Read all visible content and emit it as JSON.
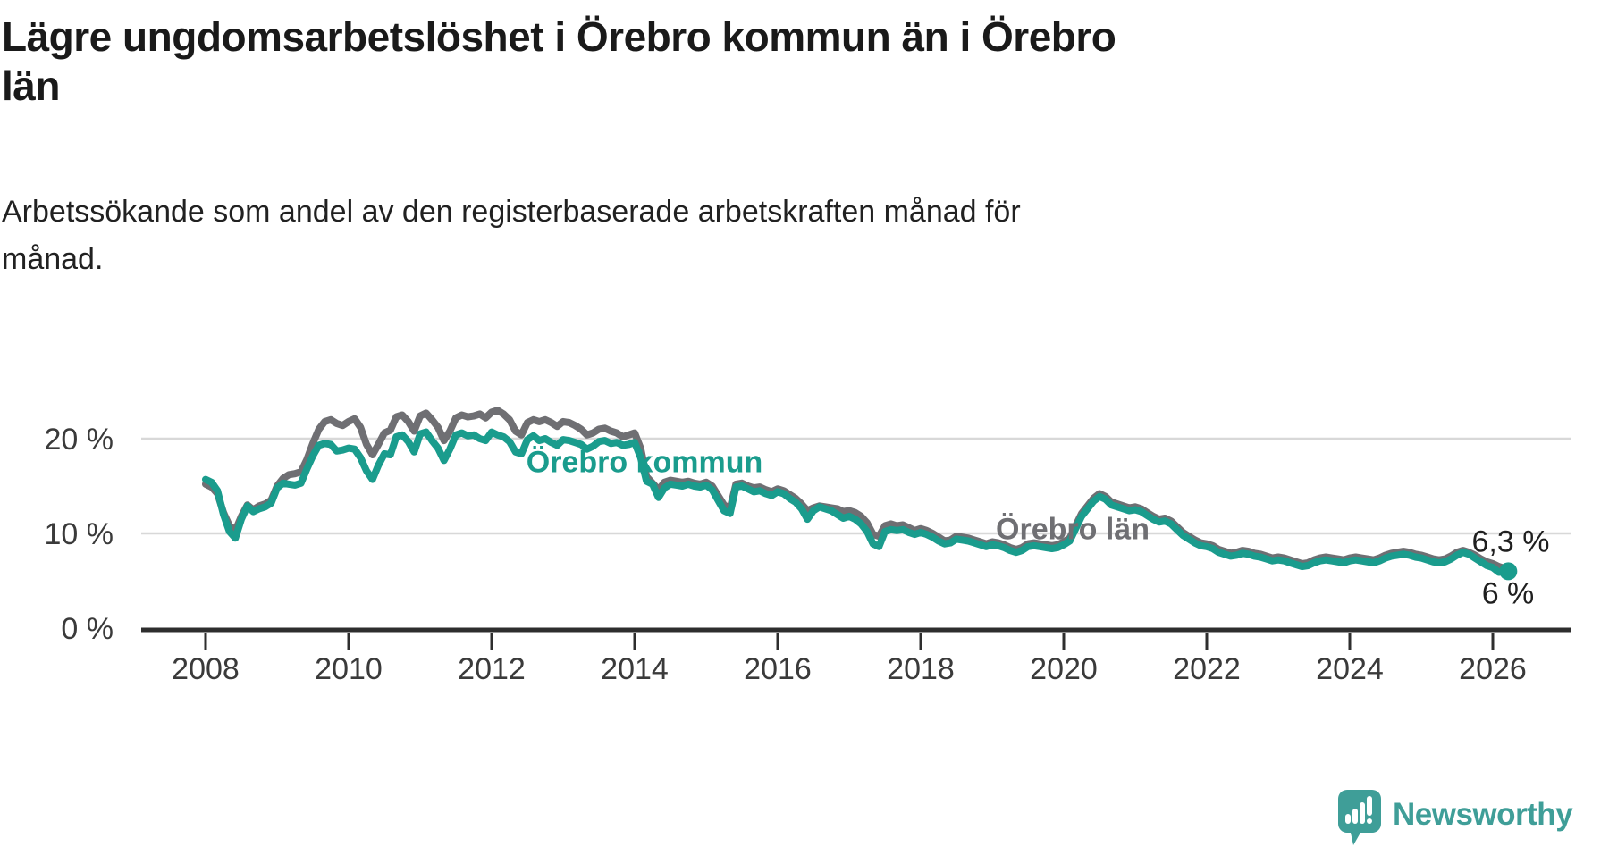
{
  "header": {
    "title": "Lägre ungdomsarbetslöshet i Örebro kommun än i Örebro\nlän",
    "subtitle": "Arbetssökande som andel av den registerbaserade arbetskraften månad för\nmånad."
  },
  "branding": {
    "logo_text": "Newsworthy",
    "logo_icon": "newsworthy-speech-bubble-bar-chart",
    "logo_color": "#3f9e98"
  },
  "chart_data": {
    "type": "line",
    "title": "Lägre ungdomsarbetslöshet i Örebro kommun än i Örebro län",
    "subtitle": "Arbetssökande som andel av den registerbaserade arbetskraften månad för månad.",
    "unit": "%",
    "frequency": "monthly",
    "x_axis": {
      "range": [
        2007.1,
        2027.1
      ],
      "ticks": [
        "2008",
        "2010",
        "2012",
        "2014",
        "2016",
        "2018",
        "2020",
        "2022",
        "2024",
        "2026"
      ],
      "tick_values": [
        2008,
        2010,
        2012,
        2014,
        2016,
        2018,
        2020,
        2022,
        2024,
        2026
      ]
    },
    "y_axis": {
      "range": [
        0,
        24
      ],
      "grid": true,
      "ticks": [
        {
          "value": 20,
          "label": "20 %"
        },
        {
          "value": 10,
          "label": "10 %"
        },
        {
          "value": 0,
          "label": "0 %"
        }
      ]
    },
    "colors": {
      "grid": "#d8d8d8",
      "axis": "#2e2e2e",
      "tick_label": "#3a3a3a",
      "end_label": "#1f1f1f"
    },
    "legend_position": "inline-labels",
    "series": [
      {
        "name": "Örebro län",
        "color": "#6f6f73",
        "end_label": "6,3 %",
        "end_dot": false,
        "start_year": 2008,
        "start_month": 1,
        "values": [
          15.2,
          14.9,
          14.2,
          12.2,
          10.8,
          10.3,
          11.8,
          13.0,
          12.5,
          12.9,
          13.1,
          13.5,
          15.0,
          15.8,
          16.2,
          16.3,
          16.5,
          17.8,
          19.5,
          21.0,
          21.8,
          22.0,
          21.6,
          21.4,
          21.8,
          22.1,
          21.2,
          19.4,
          18.3,
          19.4,
          20.6,
          20.9,
          22.3,
          22.5,
          21.8,
          20.8,
          22.4,
          22.7,
          22.0,
          21.2,
          19.8,
          20.8,
          22.2,
          22.5,
          22.3,
          22.4,
          22.6,
          22.2,
          22.8,
          23.0,
          22.6,
          22.0,
          20.8,
          20.4,
          21.7,
          22.0,
          21.8,
          22.0,
          21.7,
          21.3,
          21.8,
          21.7,
          21.4,
          21.0,
          20.4,
          20.6,
          21.0,
          21.1,
          20.8,
          20.6,
          20.2,
          20.4,
          20.6,
          19.0,
          16.0,
          15.3,
          14.6,
          15.4,
          15.6,
          15.5,
          15.4,
          15.5,
          15.3,
          15.2,
          15.4,
          15.0,
          14.0,
          13.0,
          12.6,
          15.2,
          15.3,
          15.0,
          14.8,
          14.9,
          14.6,
          14.4,
          14.7,
          14.5,
          14.1,
          13.7,
          13.1,
          12.4,
          12.7,
          12.9,
          12.8,
          12.7,
          12.6,
          12.3,
          12.4,
          12.2,
          11.8,
          11.1,
          9.9,
          9.7,
          10.8,
          11.0,
          10.8,
          10.9,
          10.6,
          10.3,
          10.5,
          10.3,
          10.0,
          9.6,
          9.2,
          9.3,
          9.7,
          9.6,
          9.5,
          9.3,
          9.1,
          8.9,
          9.1,
          9.0,
          8.8,
          8.5,
          8.3,
          8.5,
          8.9,
          9.0,
          8.9,
          8.8,
          8.7,
          8.8,
          9.1,
          9.5,
          10.8,
          12.1,
          12.9,
          13.7,
          14.2,
          13.9,
          13.3,
          13.1,
          12.9,
          12.7,
          12.8,
          12.6,
          12.2,
          11.8,
          11.5,
          11.6,
          11.3,
          10.7,
          10.1,
          9.7,
          9.3,
          9.0,
          8.9,
          8.7,
          8.3,
          8.1,
          7.9,
          8.0,
          8.2,
          8.1,
          7.9,
          7.8,
          7.6,
          7.4,
          7.5,
          7.4,
          7.2,
          7.0,
          6.8,
          6.9,
          7.2,
          7.4,
          7.5,
          7.4,
          7.3,
          7.2,
          7.4,
          7.5,
          7.4,
          7.3,
          7.2,
          7.4,
          7.7,
          7.9,
          8.0,
          8.1,
          8.0,
          7.8,
          7.7,
          7.5,
          7.3,
          7.2,
          7.3,
          7.6,
          8.0,
          8.2,
          8.0,
          7.7,
          7.3,
          7.0,
          6.8,
          6.5,
          6.3
        ]
      },
      {
        "name": "Örebro kommun",
        "color": "#1a9c8d",
        "end_label": "6 %",
        "end_dot": true,
        "start_year": 2008,
        "start_month": 1,
        "values": [
          15.7,
          15.4,
          14.5,
          12.0,
          10.2,
          9.5,
          11.5,
          12.9,
          12.3,
          12.6,
          12.8,
          13.2,
          14.8,
          15.3,
          15.2,
          15.1,
          15.3,
          16.8,
          18.2,
          19.3,
          19.5,
          19.4,
          18.7,
          18.8,
          19.0,
          18.9,
          18.0,
          16.6,
          15.7,
          17.2,
          18.4,
          18.3,
          20.2,
          20.4,
          19.7,
          18.6,
          20.5,
          20.7,
          19.8,
          19.0,
          17.7,
          18.9,
          20.4,
          20.6,
          20.3,
          20.4,
          20.0,
          19.8,
          20.7,
          20.4,
          20.2,
          19.7,
          18.6,
          18.4,
          19.9,
          20.3,
          19.8,
          20.0,
          19.6,
          19.3,
          19.9,
          19.8,
          19.6,
          19.4,
          18.9,
          19.2,
          19.7,
          19.8,
          19.5,
          19.6,
          19.3,
          19.4,
          19.6,
          18.0,
          15.5,
          15.2,
          13.8,
          14.8,
          15.2,
          15.1,
          15.0,
          15.2,
          15.0,
          14.9,
          15.1,
          14.6,
          13.5,
          12.4,
          12.1,
          14.9,
          15.0,
          14.7,
          14.4,
          14.5,
          14.2,
          14.0,
          14.4,
          14.2,
          13.7,
          13.3,
          12.6,
          11.5,
          12.4,
          12.8,
          12.6,
          12.4,
          12.0,
          11.6,
          11.8,
          11.5,
          11.0,
          10.2,
          8.9,
          8.6,
          10.2,
          10.4,
          10.3,
          10.4,
          10.1,
          9.9,
          10.1,
          9.9,
          9.6,
          9.2,
          8.9,
          9.0,
          9.4,
          9.3,
          9.2,
          9.0,
          8.8,
          8.6,
          8.8,
          8.7,
          8.5,
          8.2,
          8.0,
          8.2,
          8.6,
          8.7,
          8.6,
          8.5,
          8.4,
          8.5,
          8.8,
          9.2,
          10.5,
          11.8,
          12.6,
          13.4,
          13.9,
          13.6,
          13.0,
          12.8,
          12.6,
          12.4,
          12.5,
          12.3,
          11.9,
          11.5,
          11.2,
          11.3,
          11.0,
          10.4,
          9.8,
          9.4,
          9.0,
          8.7,
          8.6,
          8.4,
          8.0,
          7.8,
          7.6,
          7.7,
          7.9,
          7.8,
          7.6,
          7.5,
          7.3,
          7.1,
          7.2,
          7.1,
          6.9,
          6.7,
          6.5,
          6.6,
          6.9,
          7.1,
          7.2,
          7.1,
          7.0,
          6.9,
          7.1,
          7.2,
          7.1,
          7.0,
          6.9,
          7.1,
          7.4,
          7.6,
          7.7,
          7.8,
          7.7,
          7.5,
          7.4,
          7.2,
          7.0,
          6.9,
          7.0,
          7.3,
          7.7,
          8.0,
          7.8,
          7.4,
          7.0,
          6.6,
          6.4,
          5.9,
          6.0
        ]
      }
    ]
  }
}
